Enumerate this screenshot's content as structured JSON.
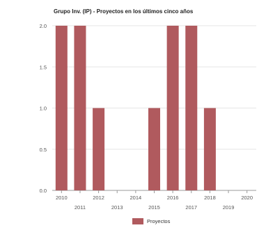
{
  "chart_data": {
    "type": "bar",
    "title": "Grupo Inv. (IP) - Proyectos en los últimos cinco años",
    "xlabel": "",
    "ylabel": "",
    "categories": [
      "2010",
      "2011",
      "2012",
      "2013",
      "2014",
      "2015",
      "2016",
      "2017",
      "2018",
      "2019",
      "2020"
    ],
    "series": [
      {
        "name": "Proyectos",
        "values": [
          2,
          2,
          1,
          0,
          0,
          1,
          2,
          2,
          1,
          0,
          0
        ]
      }
    ],
    "yticks": [
      "0.0",
      "0.5",
      "1.0",
      "1.5",
      "2.0"
    ],
    "ylim": [
      0,
      2
    ],
    "grid": true,
    "legend_position": "bottom-center",
    "colors": {
      "bar": "#b05a5e",
      "grid": "#e6e6e6",
      "axis": "#9a9a9a",
      "text": "#555555"
    }
  }
}
